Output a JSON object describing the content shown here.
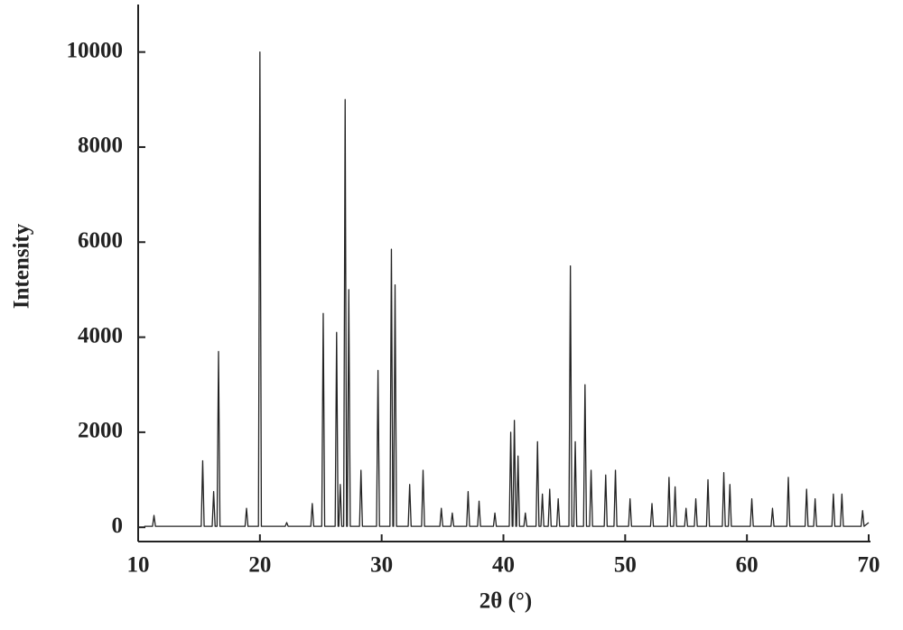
{
  "chart_data": {
    "type": "line",
    "x_label": "2θ (°)",
    "y_label": "Intensity",
    "xlim": [
      10,
      70
    ],
    "xticks": [
      10,
      20,
      30,
      40,
      50,
      60,
      70
    ],
    "ylim": [
      -300,
      11000
    ],
    "yticks": [
      0,
      2000,
      4000,
      6000,
      8000,
      10000
    ],
    "color": "#222222",
    "grid": false,
    "x": [
      10.5,
      11.18,
      11.3,
      11.42,
      15.18,
      15.3,
      15.42,
      16.08,
      16.2,
      16.32,
      16.48,
      16.6,
      16.72,
      18.78,
      18.9,
      19.02,
      19.88,
      20.0,
      20.12,
      22.08,
      22.2,
      22.32,
      24.18,
      24.3,
      24.42,
      25.08,
      25.2,
      25.32,
      26.18,
      26.3,
      26.42,
      26.48,
      26.6,
      26.72,
      26.88,
      27.0,
      27.12,
      27.18,
      27.3,
      27.42,
      28.18,
      28.3,
      28.42,
      29.58,
      29.7,
      29.82,
      30.68,
      30.8,
      30.92,
      30.98,
      31.1,
      31.22,
      32.18,
      32.3,
      32.42,
      33.28,
      33.4,
      33.52,
      34.78,
      34.9,
      35.02,
      35.68,
      35.8,
      35.92,
      36.98,
      37.1,
      37.22,
      37.88,
      38.0,
      38.12,
      39.18,
      39.3,
      39.42,
      40.48,
      40.6,
      40.72,
      40.78,
      40.9,
      41.02,
      41.08,
      41.2,
      41.32,
      41.68,
      41.8,
      41.92,
      42.68,
      42.8,
      42.92,
      43.08,
      43.2,
      43.32,
      43.68,
      43.8,
      43.92,
      44.38,
      44.5,
      44.62,
      45.38,
      45.5,
      45.62,
      45.78,
      45.9,
      46.02,
      46.58,
      46.7,
      46.82,
      47.08,
      47.2,
      47.32,
      48.28,
      48.4,
      48.52,
      49.08,
      49.2,
      49.32,
      50.28,
      50.4,
      50.52,
      52.08,
      52.2,
      52.32,
      53.48,
      53.6,
      53.72,
      53.98,
      54.1,
      54.22,
      54.88,
      55.0,
      55.12,
      55.68,
      55.8,
      55.92,
      56.68,
      56.8,
      56.92,
      57.98,
      58.1,
      58.22,
      58.48,
      58.6,
      58.72,
      60.28,
      60.4,
      60.52,
      61.98,
      62.1,
      62.22,
      63.28,
      63.4,
      63.52,
      64.78,
      64.9,
      65.02,
      65.48,
      65.6,
      65.72,
      66.98,
      67.1,
      67.22,
      67.68,
      67.8,
      67.92,
      69.38,
      69.5,
      69.62,
      70
    ],
    "values": [
      20,
      20,
      250,
      20,
      20,
      1400,
      20,
      20,
      750,
      20,
      20,
      3700,
      20,
      20,
      400,
      20,
      20,
      10000,
      20,
      20,
      100,
      20,
      20,
      500,
      20,
      20,
      4500,
      20,
      20,
      4100,
      20,
      20,
      900,
      20,
      20,
      9000,
      20,
      20,
      5000,
      20,
      20,
      1200,
      20,
      20,
      3300,
      20,
      20,
      5850,
      20,
      20,
      5100,
      20,
      20,
      900,
      20,
      20,
      1200,
      20,
      20,
      400,
      20,
      20,
      300,
      20,
      20,
      750,
      20,
      20,
      550,
      20,
      20,
      300,
      20,
      20,
      2000,
      20,
      20,
      2250,
      20,
      20,
      1500,
      20,
      20,
      300,
      20,
      20,
      1800,
      20,
      20,
      700,
      20,
      20,
      800,
      20,
      20,
      600,
      20,
      20,
      5500,
      20,
      20,
      1800,
      20,
      20,
      3000,
      20,
      20,
      1200,
      20,
      20,
      1100,
      20,
      20,
      1200,
      20,
      20,
      600,
      20,
      20,
      500,
      20,
      20,
      1050,
      20,
      20,
      850,
      20,
      20,
      400,
      20,
      20,
      600,
      20,
      20,
      1000,
      20,
      20,
      1150,
      20,
      20,
      900,
      20,
      20,
      600,
      20,
      20,
      400,
      20,
      20,
      1050,
      20,
      20,
      800,
      20,
      20,
      600,
      20,
      20,
      700,
      20,
      20,
      700,
      20,
      20,
      350,
      20,
      100
    ]
  }
}
